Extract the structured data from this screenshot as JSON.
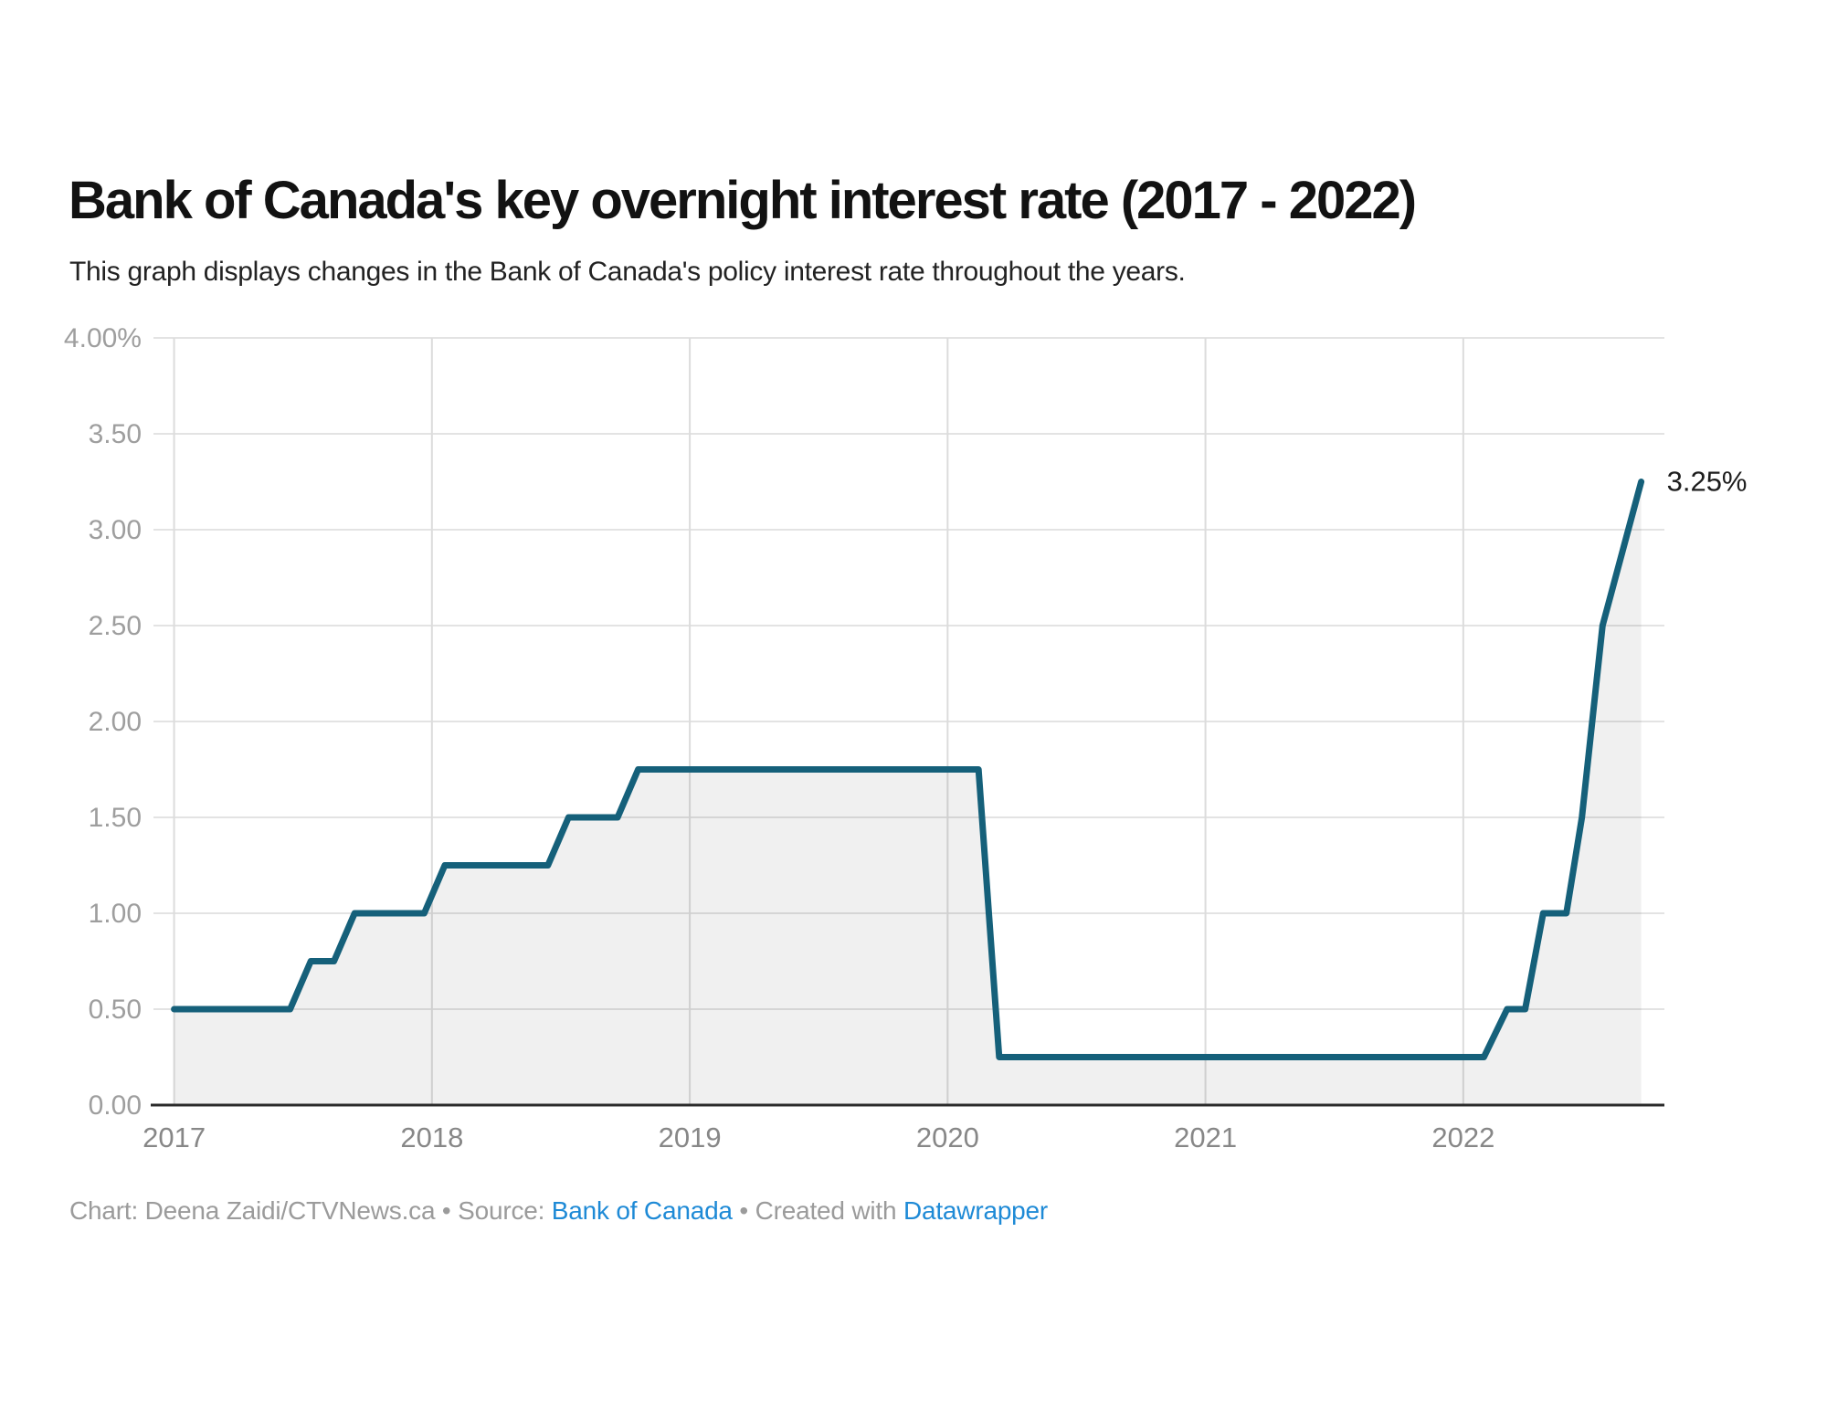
{
  "chart_data": {
    "type": "area",
    "title": "Bank of Canada's key overnight interest rate (2017 - 2022)",
    "subtitle": "This graph displays changes in the Bank of Canada's policy interest rate throughout the years.",
    "series": [
      {
        "name": "Bank of Canada key overnight interest rate (%)",
        "points": [
          [
            2017.0,
            0.5
          ],
          [
            2017.45,
            0.5
          ],
          [
            2017.53,
            0.75
          ],
          [
            2017.62,
            0.75
          ],
          [
            2017.7,
            1.0
          ],
          [
            2017.97,
            1.0
          ],
          [
            2018.05,
            1.25
          ],
          [
            2018.45,
            1.25
          ],
          [
            2018.53,
            1.5
          ],
          [
            2018.72,
            1.5
          ],
          [
            2018.8,
            1.75
          ],
          [
            2020.12,
            1.75
          ],
          [
            2020.2,
            0.25
          ],
          [
            2022.08,
            0.25
          ],
          [
            2022.17,
            0.5
          ],
          [
            2022.24,
            0.5
          ],
          [
            2022.31,
            1.0
          ],
          [
            2022.4,
            1.0
          ],
          [
            2022.46,
            1.5
          ],
          [
            2022.54,
            2.5
          ],
          [
            2022.69,
            3.25
          ]
        ]
      }
    ],
    "end_label": "3.25%",
    "y_ticks": [
      {
        "value": 4.0,
        "label": "4.00%"
      },
      {
        "value": 3.5,
        "label": "3.50"
      },
      {
        "value": 3.0,
        "label": "3.00"
      },
      {
        "value": 2.5,
        "label": "2.50"
      },
      {
        "value": 2.0,
        "label": "2.00"
      },
      {
        "value": 1.5,
        "label": "1.50"
      },
      {
        "value": 1.0,
        "label": "1.00"
      },
      {
        "value": 0.5,
        "label": "0.50"
      },
      {
        "value": 0.0,
        "label": "0.00"
      }
    ],
    "x_ticks": [
      {
        "value": 2017,
        "label": "2017"
      },
      {
        "value": 2018,
        "label": "2018"
      },
      {
        "value": 2019,
        "label": "2019"
      },
      {
        "value": 2020,
        "label": "2020"
      },
      {
        "value": 2021,
        "label": "2021"
      },
      {
        "value": 2022,
        "label": "2022"
      }
    ],
    "ylim": [
      0,
      4
    ],
    "xlim": [
      2016.92,
      2022.78
    ],
    "grid": true,
    "legend_position": "none"
  },
  "colors": {
    "line": "#15607a",
    "area_fill": "rgba(0,0,0,0.058)",
    "h_gridline": "#e3e3e3",
    "v_gridline": "#dcdcdc",
    "baseline": "#2b2b2b",
    "link_blue": "#1e8ad6"
  },
  "footer": {
    "prefix": "Chart: Deena Zaidi/CTVNews.ca • Source: ",
    "source_link": "Bank of Canada",
    "middle": " • Created with ",
    "dw_link": "Datawrapper"
  }
}
